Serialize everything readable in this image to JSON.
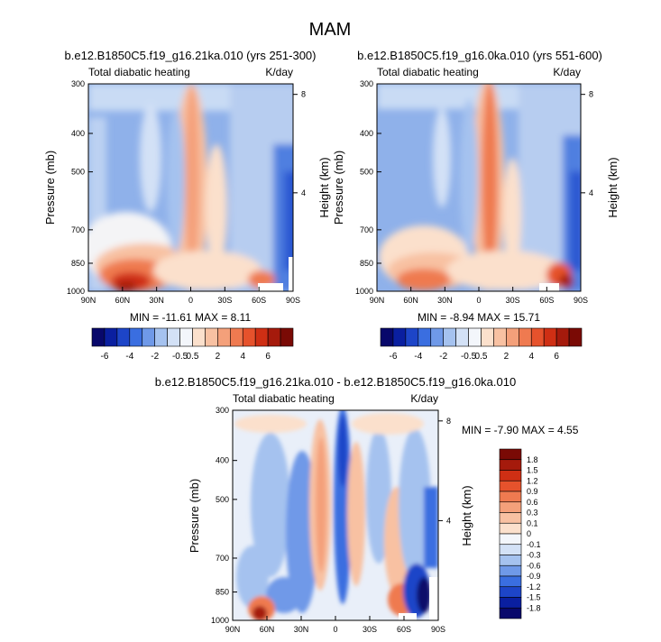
{
  "figure": {
    "title": "MAM"
  },
  "palette": {
    "negative": [
      "#08086b",
      "#0a1fa0",
      "#1d45c8",
      "#3a6ee0",
      "#6f99e8",
      "#a5c2ef",
      "#d3e1f6"
    ],
    "neutral": "#f3f6fb",
    "positive": [
      "#fbe0cc",
      "#f8c1a2",
      "#f4a07a",
      "#ef7a50",
      "#e6522c",
      "#cf2f14",
      "#a51a0c",
      "#7a0a05"
    ]
  },
  "chart_data": [
    {
      "type": "heatmap",
      "title": "b.e12.B1850C5.f19_g16.21ka.010 (yrs 251-300)",
      "subtitle_left": "Total diabatic heating",
      "subtitle_right": "K/day",
      "xlabel": "",
      "ylabel": "Pressure (mb)",
      "ylabel_right": "Height (km)",
      "x_ticks": [
        "90N",
        "60N",
        "30N",
        "0",
        "30S",
        "60S",
        "90S"
      ],
      "y_ticks": [
        "300",
        "400",
        "500",
        "700",
        "850",
        "1000"
      ],
      "y_ticks_right": [
        "8",
        "4"
      ],
      "stats": "MIN = -11.61  MAX =  8.11",
      "colorbar_labels": [
        "-6",
        "-4",
        "-2",
        "-0.5",
        "0.5",
        "2",
        "4",
        "6"
      ]
    },
    {
      "type": "heatmap",
      "title": "b.e12.B1850C5.f19_g16.0ka.010 (yrs 551-600)",
      "subtitle_left": "Total diabatic heating",
      "subtitle_right": "K/day",
      "xlabel": "",
      "ylabel": "Pressure (mb)",
      "ylabel_right": "Height (km)",
      "x_ticks": [
        "90N",
        "60N",
        "30N",
        "0",
        "30S",
        "60S",
        "90S"
      ],
      "y_ticks": [
        "300",
        "400",
        "500",
        "700",
        "850",
        "1000"
      ],
      "y_ticks_right": [
        "8",
        "4"
      ],
      "stats": "MIN =  -8.94  MAX =  15.71",
      "colorbar_labels": [
        "-6",
        "-4",
        "-2",
        "-0.5",
        "0.5",
        "2",
        "4",
        "6"
      ]
    },
    {
      "type": "heatmap",
      "title": "b.e12.B1850C5.f19_g16.21ka.010 - b.e12.B1850C5.f19_g16.0ka.010",
      "subtitle_left": "Total diabatic heating",
      "subtitle_right": "K/day",
      "xlabel": "",
      "ylabel": "Pressure (mb)",
      "ylabel_right": "Height (km)",
      "x_ticks": [
        "90N",
        "60N",
        "30N",
        "0",
        "30S",
        "60S",
        "90S"
      ],
      "y_ticks": [
        "300",
        "400",
        "500",
        "700",
        "850",
        "1000"
      ],
      "y_ticks_right": [
        "8",
        "4"
      ],
      "stats": "MIN =  -7.90  MAX =   4.55",
      "colorbar_labels": [
        "1.8",
        "1.5",
        "1.2",
        "0.9",
        "0.6",
        "0.3",
        "0.1",
        "0",
        "-0.1",
        "-0.3",
        "-0.6",
        "-0.9",
        "-1.2",
        "-1.5",
        "-1.8"
      ]
    }
  ]
}
